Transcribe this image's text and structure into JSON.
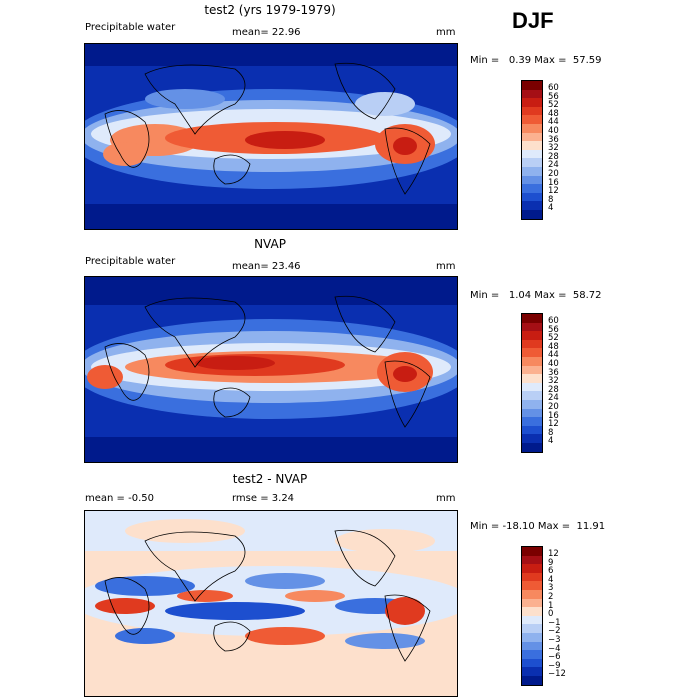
{
  "header": {
    "season": "DJF"
  },
  "panels": [
    {
      "title": "test2 (yrs 1979-1979)",
      "variable": "Precipitable water",
      "stat": "mean=  22.96",
      "units": "mm",
      "minmax": "Min =   0.39 Max =  57.59",
      "colorbar": {
        "labels": [
          "60",
          "56",
          "52",
          "48",
          "44",
          "40",
          "36",
          "32",
          "28",
          "24",
          "20",
          "16",
          "12",
          "8",
          "4"
        ],
        "colors": [
          "#7a0000",
          "#a50f15",
          "#c81d12",
          "#e03a1f",
          "#ef5b35",
          "#f7895f",
          "#fbb190",
          "#fde0cc",
          "#dfeafb",
          "#b9cff5",
          "#8fb2ee",
          "#6491e6",
          "#3a6fde",
          "#1d4fcf",
          "#0a2fb0",
          "#001a8c"
        ]
      }
    },
    {
      "title": "NVAP",
      "variable": "Precipitable water",
      "stat": "mean=  23.46",
      "units": "mm",
      "minmax": "Min =   1.04 Max =  58.72",
      "colorbar": {
        "labels": [
          "60",
          "56",
          "52",
          "48",
          "44",
          "40",
          "36",
          "32",
          "28",
          "24",
          "20",
          "16",
          "12",
          "8",
          "4"
        ],
        "colors": [
          "#7a0000",
          "#a50f15",
          "#c81d12",
          "#e03a1f",
          "#ef5b35",
          "#f7895f",
          "#fbb190",
          "#fde0cc",
          "#dfeafb",
          "#b9cff5",
          "#8fb2ee",
          "#6491e6",
          "#3a6fde",
          "#1d4fcf",
          "#0a2fb0",
          "#001a8c"
        ]
      }
    },
    {
      "title": "test2 - NVAP",
      "stat_mean": "mean =   -0.50",
      "stat_rmse": "rmse =    3.24",
      "units": "mm",
      "minmax": "Min = -18.10 Max =  11.91",
      "colorbar": {
        "labels": [
          "12",
          "9",
          "6",
          "4",
          "3",
          "2",
          "1",
          "0",
          "−1",
          "−2",
          "−3",
          "−4",
          "−6",
          "−9",
          "−12"
        ],
        "colors": [
          "#7a0000",
          "#a50f15",
          "#c81d12",
          "#e03a1f",
          "#ef5b35",
          "#f7895f",
          "#fbb190",
          "#fde0cc",
          "#dfeafb",
          "#b9cff5",
          "#8fb2ee",
          "#6491e6",
          "#3a6fde",
          "#1d4fcf",
          "#0a2fb0",
          "#001a8c"
        ]
      }
    }
  ]
}
